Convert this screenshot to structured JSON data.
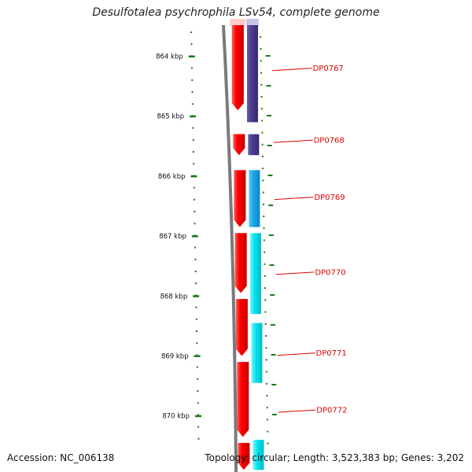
{
  "title": "Desulfotalea psychrophila LSv54, complete genome",
  "footer": {
    "accession": "Accession: NC_006138",
    "topology": "Topology: circular; Length: 3,523,383 bp; Genes: 3,202"
  },
  "colors": {
    "backbone": "#7a7a7a",
    "forward_gene": "#ff0000",
    "reverse_gene_dark": "#4b3d8c",
    "reverse_gene_mid": "#1aa6e6",
    "reverse_gene_cyan": "#00e5ee",
    "ticks": "#1a7a1a",
    "gene_label": "#e00000"
  },
  "scale": {
    "unit": "kbp",
    "ticks": [
      {
        "label": "864 kbp",
        "pos": 864
      },
      {
        "label": "865 kbp",
        "pos": 865
      },
      {
        "label": "866 kbp",
        "pos": 866
      },
      {
        "label": "867 kbp",
        "pos": 867
      },
      {
        "label": "868 kbp",
        "pos": 868
      },
      {
        "label": "869 kbp",
        "pos": 869
      },
      {
        "label": "870 kbp",
        "pos": 870
      }
    ]
  },
  "forward_genes": [
    {
      "start": 863.3,
      "end": 864.9
    },
    {
      "start": 865.3,
      "end": 865.65
    },
    {
      "start": 865.9,
      "end": 866.85
    },
    {
      "start": 866.95,
      "end": 867.95
    },
    {
      "start": 868.05,
      "end": 869.0
    },
    {
      "start": 869.1,
      "end": 870.35
    },
    {
      "start": 870.45,
      "end": 870.9
    }
  ],
  "reverse_genes": [
    {
      "start": 863.3,
      "end": 865.1,
      "color": "reverse_gene_dark"
    },
    {
      "start": 865.3,
      "end": 865.65,
      "color": "reverse_gene_dark"
    },
    {
      "start": 865.9,
      "end": 866.85,
      "color": "reverse_gene_mid"
    },
    {
      "start": 866.95,
      "end": 868.3,
      "color": "reverse_gene_cyan"
    },
    {
      "start": 868.45,
      "end": 869.45,
      "color": "reverse_gene_cyan"
    },
    {
      "start": 870.4,
      "end": 870.9,
      "color": "reverse_gene_cyan"
    }
  ],
  "genes": [
    {
      "name": "DP0767",
      "pos": 864.2
    },
    {
      "name": "DP0768",
      "pos": 865.4
    },
    {
      "name": "DP0769",
      "pos": 866.35
    },
    {
      "name": "DP0770",
      "pos": 867.6
    },
    {
      "name": "DP0771",
      "pos": 868.95
    },
    {
      "name": "DP0772",
      "pos": 869.9
    }
  ]
}
